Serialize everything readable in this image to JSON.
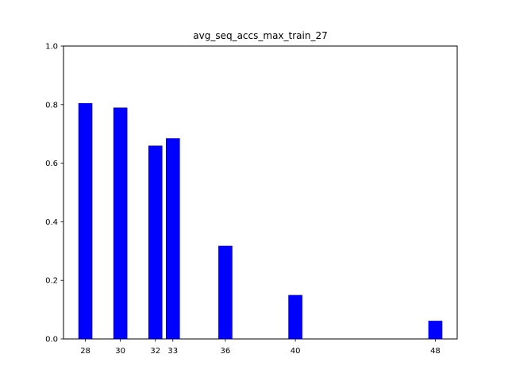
{
  "chart_data": {
    "type": "bar",
    "title": "avg_seq_accs_max_train_27",
    "xlabel": "",
    "ylabel": "",
    "x": [
      28,
      30,
      32,
      33,
      36,
      40,
      48
    ],
    "x_tick_labels": [
      "28",
      "30",
      "32",
      "33",
      "36",
      "40",
      "48"
    ],
    "values": [
      0.805,
      0.79,
      0.66,
      0.685,
      0.318,
      0.15,
      0.062
    ],
    "bar_width": 0.8,
    "xlim": [
      26.75,
      49.25
    ],
    "ylim": [
      0,
      1.0
    ],
    "y_ticks": [
      0.0,
      0.2,
      0.4,
      0.6,
      0.8,
      1.0
    ],
    "y_tick_labels": [
      "0.0",
      "0.2",
      "0.4",
      "0.6",
      "0.8",
      "1.0"
    ],
    "bar_color": "#0000ff",
    "grid": false,
    "legend": "none"
  }
}
